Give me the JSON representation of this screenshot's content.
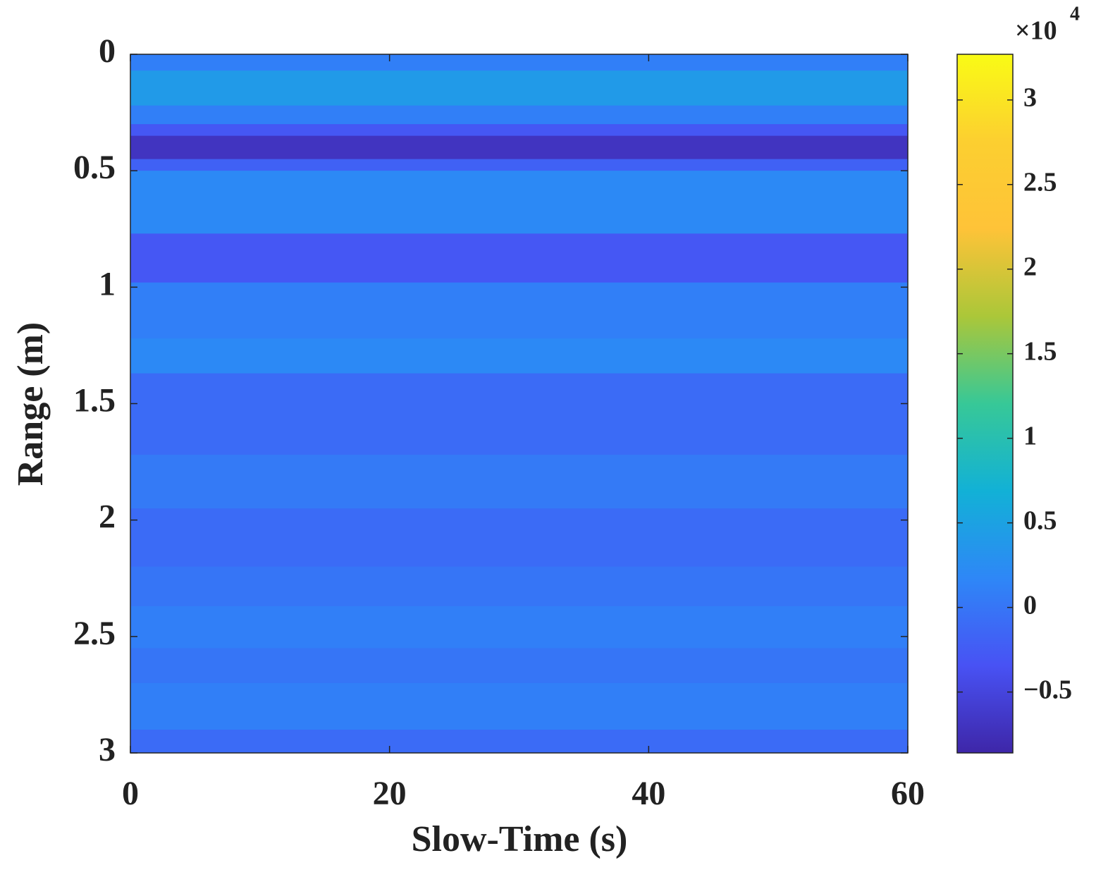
{
  "chart_data": {
    "type": "heatmap",
    "xlabel": "Slow-Time (s)",
    "ylabel": "Range (m)",
    "xlim": [
      0,
      60
    ],
    "xticks": [
      0,
      20,
      40,
      60
    ],
    "ylim": [
      0,
      3
    ],
    "yticks": [
      0,
      0.5,
      1,
      1.5,
      2,
      2.5,
      3
    ],
    "y_reversed": true,
    "y_bins": [
      0,
      0.07,
      0.22,
      0.3,
      0.35,
      0.45,
      0.5,
      0.77,
      0.98,
      1.22,
      1.37,
      1.72,
      1.95,
      2.2,
      2.37,
      2.55,
      2.7,
      2.9,
      3
    ],
    "values": [
      0.1,
      0.4,
      0.1,
      -0.3,
      -0.7,
      -0.2,
      0.2,
      -0.3,
      0.1,
      0.2,
      -0.1,
      0.05,
      -0.1,
      0,
      0.1,
      0,
      0.1,
      -0.1
    ],
    "colormap": "parula",
    "clim": [
      -0.86,
      3.27
    ],
    "colorbar_ticks": [
      {
        "value": -0.5,
        "label": "−0.5"
      },
      0,
      0.5,
      1,
      1.5,
      2,
      2.5,
      3
    ],
    "colorbar_multiplier": "×10",
    "colorbar_exponent": 4
  }
}
